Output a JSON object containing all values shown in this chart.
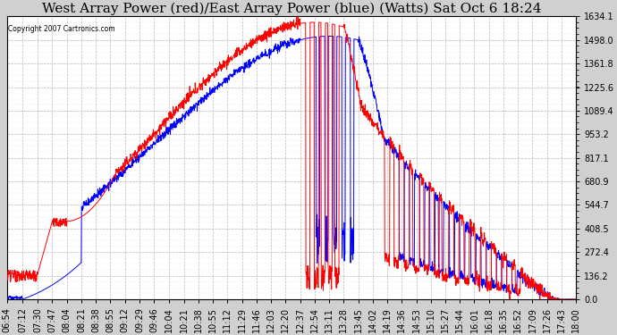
{
  "title": "West Array Power (red)/East Array Power (blue) (Watts) Sat Oct 6 18:24",
  "copyright": "Copyright 2007 Cartronics.com",
  "ymin": 0.0,
  "ymax": 1634.1,
  "yticks": [
    0.0,
    136.2,
    272.4,
    408.5,
    544.7,
    680.9,
    817.1,
    953.2,
    1089.4,
    1225.6,
    1361.8,
    1498.0,
    1634.1
  ],
  "background_color": "#d0d0d0",
  "plot_bg_color": "#ffffff",
  "grid_color": "#aaaaaa",
  "red_color": "#ff0000",
  "blue_color": "#0000ff",
  "title_fontsize": 11,
  "tick_fontsize": 7,
  "xtick_labels": [
    "06:54",
    "07:12",
    "07:30",
    "07:47",
    "08:04",
    "08:21",
    "08:38",
    "08:55",
    "09:12",
    "09:29",
    "09:46",
    "10:04",
    "10:21",
    "10:38",
    "10:55",
    "11:12",
    "11:29",
    "11:46",
    "12:03",
    "12:20",
    "12:37",
    "12:54",
    "13:11",
    "13:28",
    "13:45",
    "14:02",
    "14:19",
    "14:36",
    "14:53",
    "15:10",
    "15:27",
    "15:44",
    "16:01",
    "16:18",
    "16:35",
    "16:52",
    "17:09",
    "17:26",
    "17:43",
    "18:00"
  ]
}
